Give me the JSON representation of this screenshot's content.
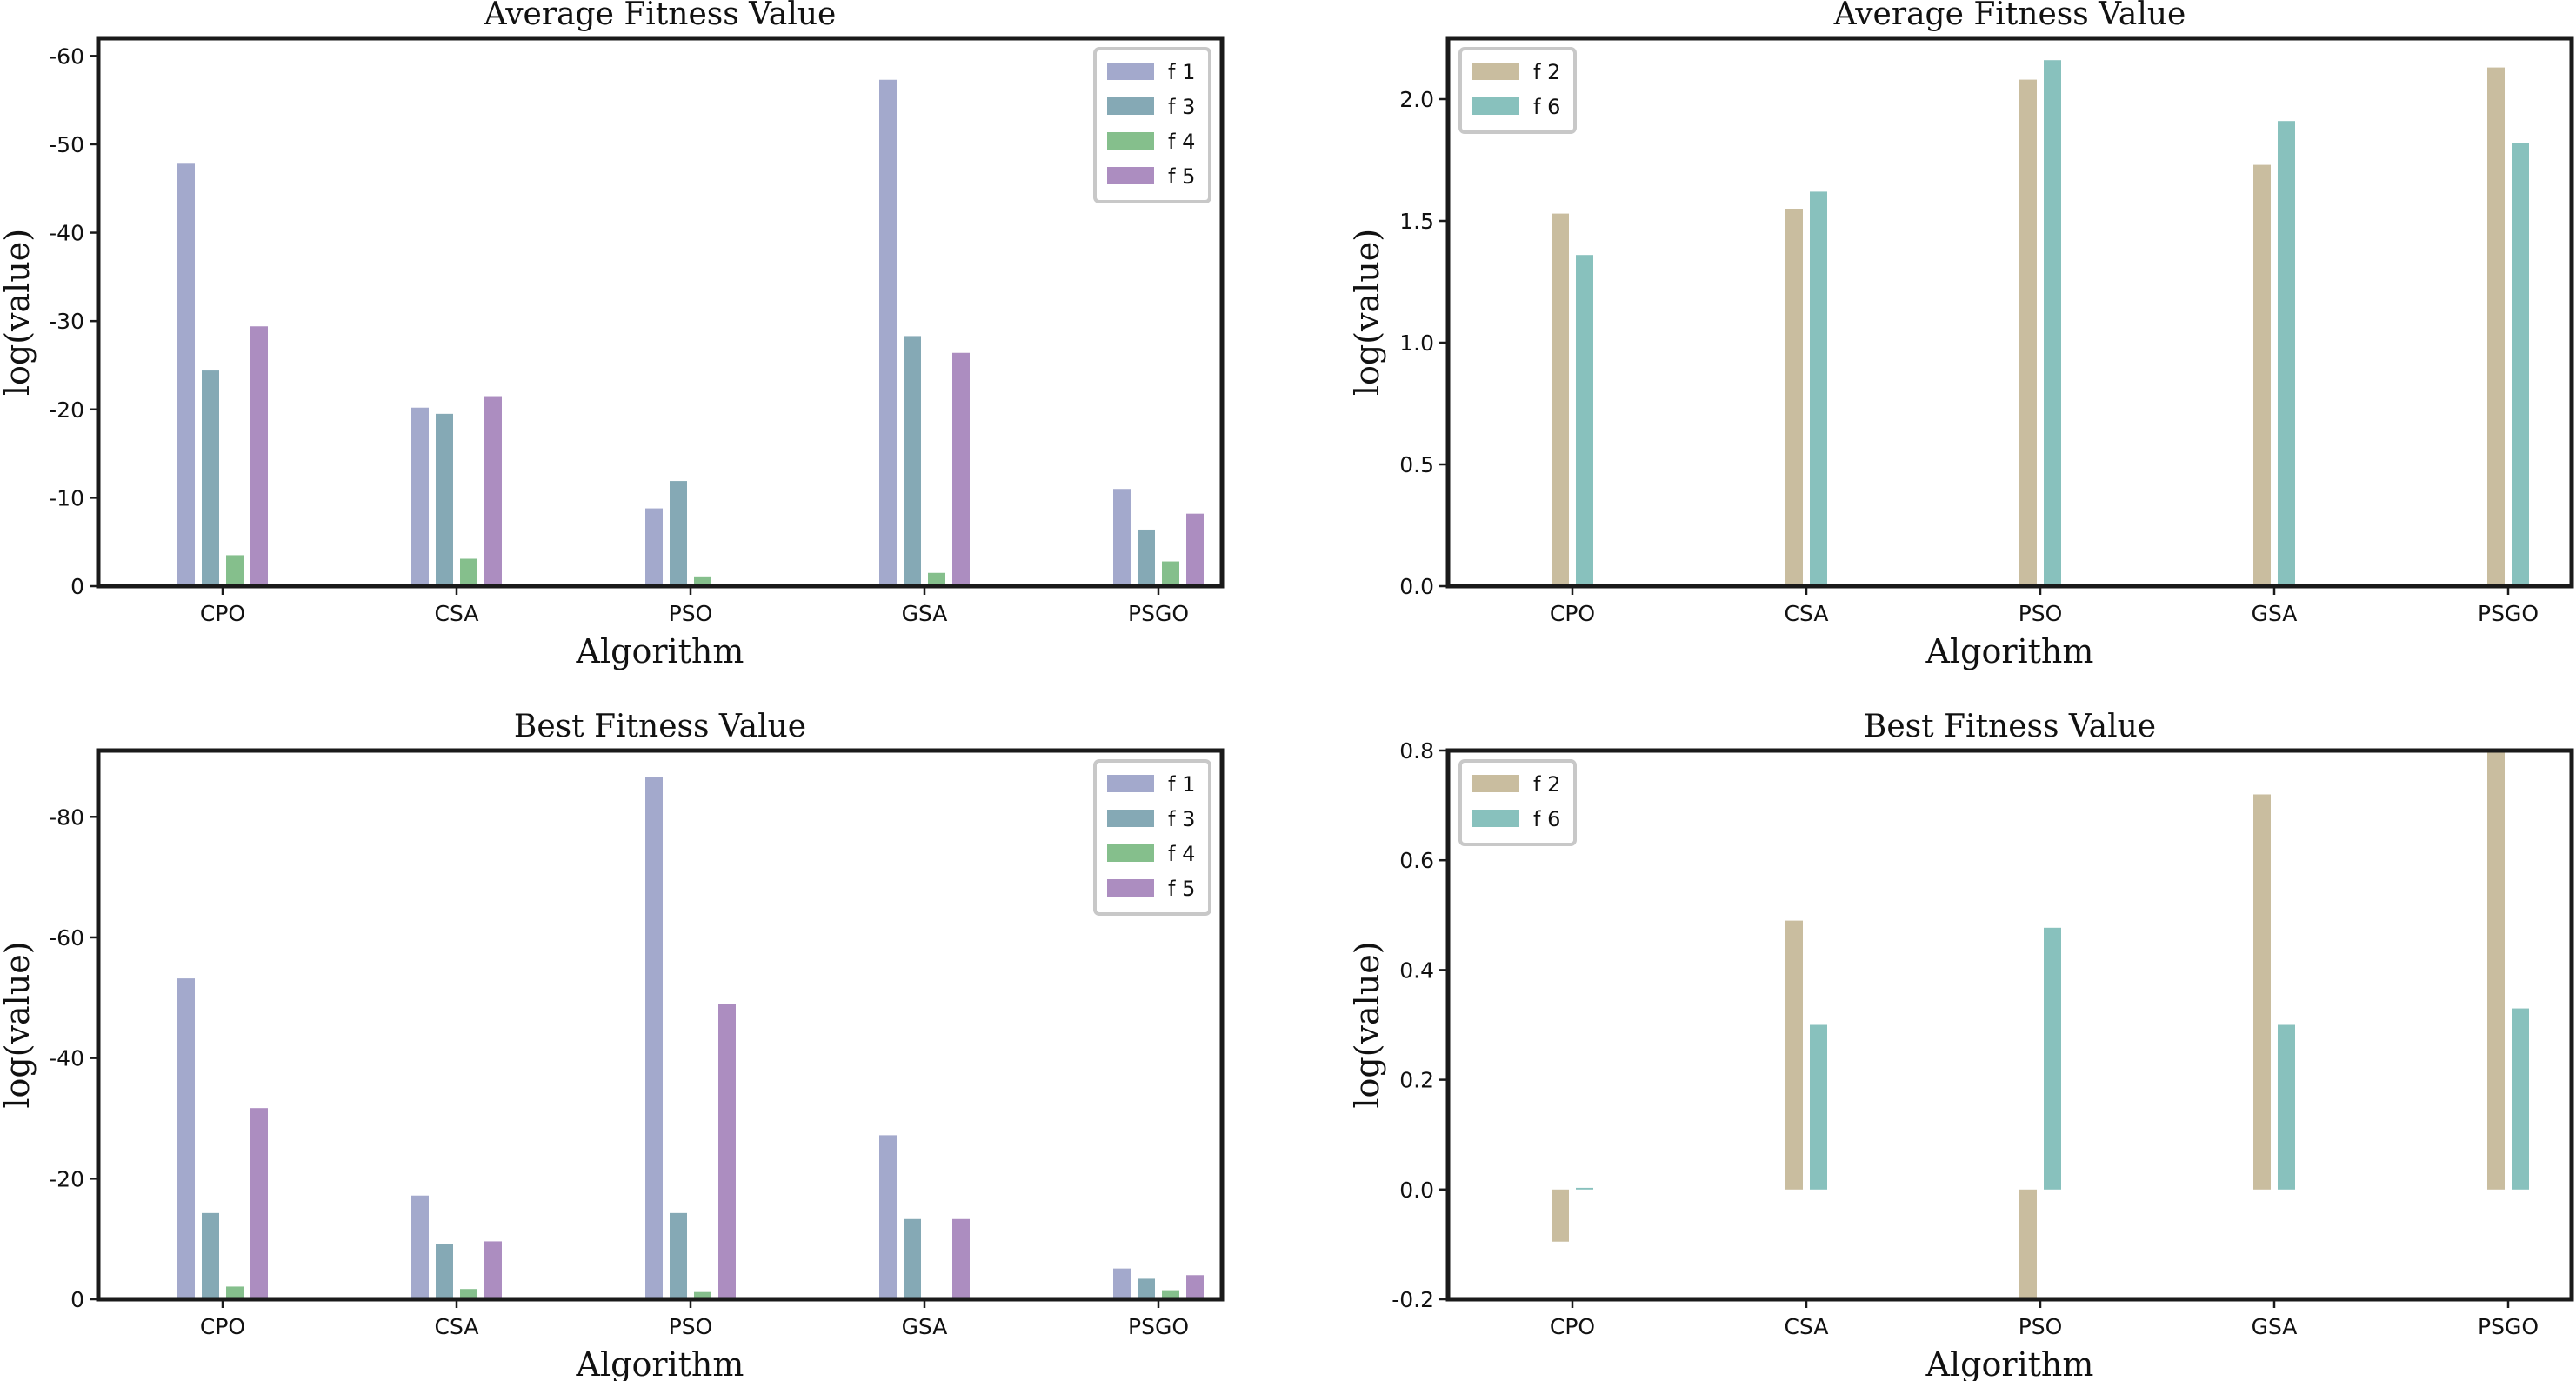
{
  "colors": {
    "f1": "#a3a9cc",
    "f2": "#c9bd9f",
    "f3": "#85a9b5",
    "f4": "#85bf8c",
    "f5": "#ac8dc0",
    "f6": "#88c1bd"
  },
  "chart_data": [
    {
      "type": "bar",
      "title": "Average Fitness Value",
      "xlabel": "Algorithm",
      "ylabel": "log(value)",
      "categories": [
        "CPO",
        "CSA",
        "PSO",
        "GSA",
        "PSGO"
      ],
      "ylim": [
        0,
        -62
      ],
      "yticks": [
        0,
        -10,
        -20,
        -30,
        -40,
        -50,
        -60
      ],
      "ytick_labels": [
        "0",
        "-10",
        "-20",
        "-30",
        "-40",
        "-50",
        "-60"
      ],
      "legend_position": "top-right",
      "series": [
        {
          "name": "f 1",
          "color_key": "f1",
          "values": [
            -47.8,
            -20.2,
            -8.8,
            -57.3,
            -11.0
          ]
        },
        {
          "name": "f 3",
          "color_key": "f3",
          "values": [
            -24.4,
            -19.5,
            -11.9,
            -28.3,
            -6.4
          ]
        },
        {
          "name": "f 4",
          "color_key": "f4",
          "values": [
            -3.5,
            -3.1,
            -1.1,
            -1.5,
            -2.8
          ]
        },
        {
          "name": "f 5",
          "color_key": "f5",
          "values": [
            -29.4,
            -21.5,
            -0.2,
            -26.4,
            -8.2
          ]
        }
      ]
    },
    {
      "type": "bar",
      "title": "Average Fitness Value",
      "xlabel": "Algorithm",
      "ylabel": "log(value)",
      "categories": [
        "CPO",
        "CSA",
        "PSO",
        "GSA",
        "PSGO"
      ],
      "ylim": [
        0,
        2.25
      ],
      "yticks": [
        0,
        0.5,
        1,
        1.5,
        2
      ],
      "ytick_labels": [
        "0.0",
        "0.5",
        "1.0",
        "1.5",
        "2.0"
      ],
      "legend_position": "top-left",
      "series": [
        {
          "name": "f 2",
          "color_key": "f2",
          "values": [
            1.53,
            1.55,
            2.08,
            1.73,
            2.13
          ]
        },
        {
          "name": "f 6",
          "color_key": "f6",
          "values": [
            1.36,
            1.62,
            2.16,
            1.91,
            1.82
          ]
        }
      ]
    },
    {
      "type": "bar",
      "title": "Best Fitness Value",
      "xlabel": "Algorithm",
      "ylabel": "log(value)",
      "categories": [
        "CPO",
        "CSA",
        "PSO",
        "GSA",
        "PSGO"
      ],
      "ylim": [
        0,
        -91
      ],
      "yticks": [
        0,
        -20,
        -40,
        -60,
        -80
      ],
      "ytick_labels": [
        "0",
        "-20",
        "-40",
        "-60",
        "-80"
      ],
      "legend_position": "top-right",
      "series": [
        {
          "name": "f 1",
          "color_key": "f1",
          "values": [
            -53.2,
            -17.2,
            -86.6,
            -27.2,
            -5.1
          ]
        },
        {
          "name": "f 3",
          "color_key": "f3",
          "values": [
            -14.3,
            -9.2,
            -14.3,
            -13.3,
            -3.4
          ]
        },
        {
          "name": "f 4",
          "color_key": "f4",
          "values": [
            -2.1,
            -1.7,
            -1.2,
            0,
            -1.5
          ]
        },
        {
          "name": "f 5",
          "color_key": "f5",
          "values": [
            -31.7,
            -9.6,
            -48.9,
            -13.3,
            -4.0
          ]
        }
      ]
    },
    {
      "type": "bar",
      "title": "Best Fitness Value",
      "xlabel": "Algorithm",
      "ylabel": "log(value)",
      "categories": [
        "CPO",
        "CSA",
        "PSO",
        "GSA",
        "PSGO"
      ],
      "ylim": [
        -0.2,
        0.8
      ],
      "yticks": [
        -0.2,
        0,
        0.2,
        0.4,
        0.6,
        0.8
      ],
      "ytick_labels": [
        "-0.2",
        "0.0",
        "0.2",
        "0.4",
        "0.6",
        "0.8"
      ],
      "legend_position": "top-left",
      "series": [
        {
          "name": "f 2",
          "color_key": "f2",
          "values": [
            -0.095,
            0.49,
            -0.2,
            0.72,
            0.8
          ]
        },
        {
          "name": "f 6",
          "color_key": "f6",
          "values": [
            0.003,
            0.3,
            0.477,
            0.3,
            0.33
          ]
        }
      ]
    }
  ]
}
